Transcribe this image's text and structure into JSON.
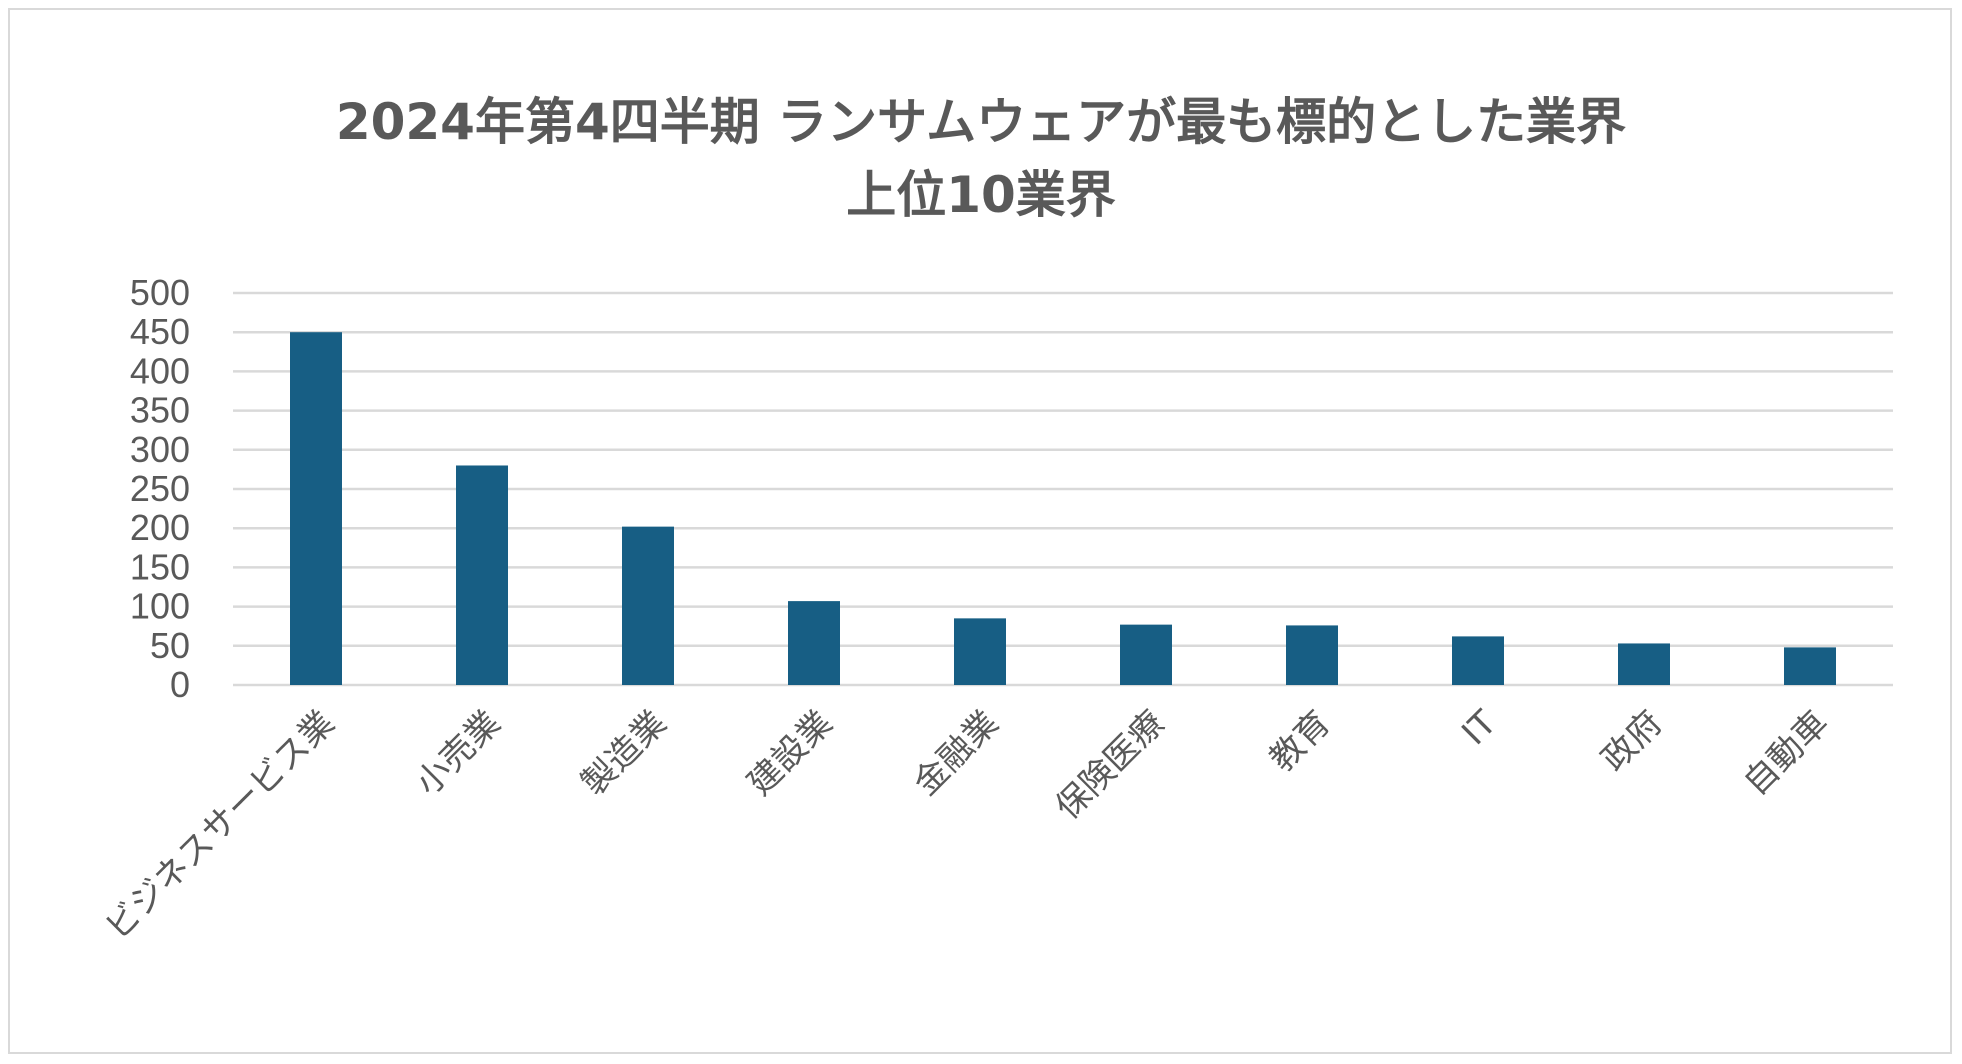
{
  "chart_data": {
    "type": "bar",
    "title_lines": [
      "2024年第4四半期 ランサムウェアが最も標的とした業界",
      "上位10業界"
    ],
    "categories": [
      "ビジネスサービス業",
      "小売業",
      "製造業",
      "建設業",
      "金融業",
      "保険医療",
      "教育",
      "IT",
      "政府",
      "自動車"
    ],
    "values": [
      450,
      280,
      202,
      107,
      85,
      77,
      76,
      62,
      53,
      48
    ],
    "ylim": [
      0,
      500
    ],
    "yticks": [
      0,
      50,
      100,
      150,
      200,
      250,
      300,
      350,
      400,
      450,
      500
    ],
    "grid": true,
    "legend": "none",
    "bar_color": "#175e84",
    "grid_color": "#d9d9d9",
    "text_color": "#595959"
  }
}
